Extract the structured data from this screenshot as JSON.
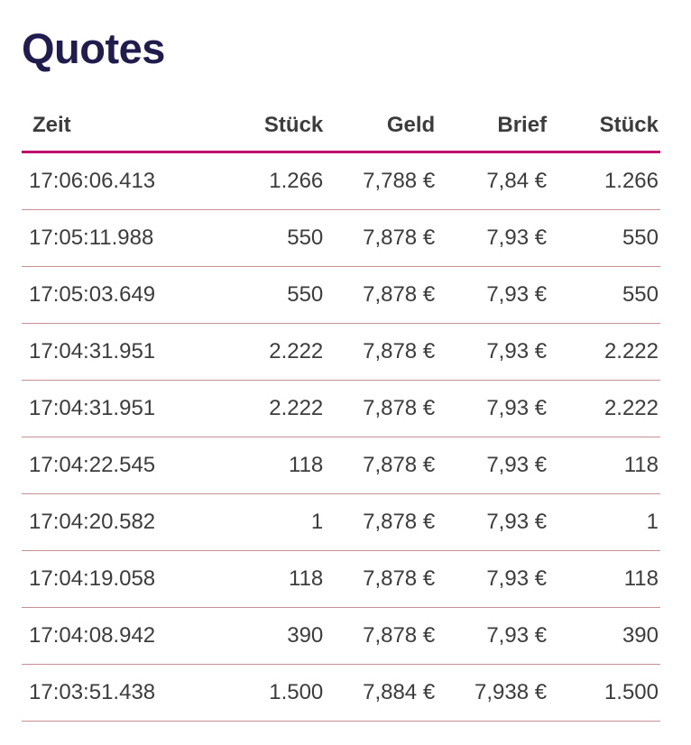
{
  "page": {
    "title": "Quotes"
  },
  "colors": {
    "title_text": "#211c4e",
    "header_rule": "#bf0d6e",
    "row_rule": "#c79097",
    "body_text": "#3c3c3c"
  },
  "table": {
    "columns": [
      {
        "label": "Zeit",
        "align": "left"
      },
      {
        "label": "Stück",
        "align": "right"
      },
      {
        "label": "Geld",
        "align": "right"
      },
      {
        "label": "Brief",
        "align": "right"
      },
      {
        "label": "Stück",
        "align": "right"
      }
    ],
    "rows": [
      [
        "17:06:06.413",
        "1.266",
        "7,788 €",
        "7,84 €",
        "1.266"
      ],
      [
        "17:05:11.988",
        "550",
        "7,878 €",
        "7,93 €",
        "550"
      ],
      [
        "17:05:03.649",
        "550",
        "7,878 €",
        "7,93 €",
        "550"
      ],
      [
        "17:04:31.951",
        "2.222",
        "7,878 €",
        "7,93 €",
        "2.222"
      ],
      [
        "17:04:31.951",
        "2.222",
        "7,878 €",
        "7,93 €",
        "2.222"
      ],
      [
        "17:04:22.545",
        "118",
        "7,878 €",
        "7,93 €",
        "118"
      ],
      [
        "17:04:20.582",
        "1",
        "7,878 €",
        "7,93 €",
        "1"
      ],
      [
        "17:04:19.058",
        "118",
        "7,878 €",
        "7,93 €",
        "118"
      ],
      [
        "17:04:08.942",
        "390",
        "7,878 €",
        "7,93 €",
        "390"
      ],
      [
        "17:03:51.438",
        "1.500",
        "7,884 €",
        "7,938 €",
        "1.500"
      ]
    ],
    "cell_names": [
      "cell-zeit",
      "cell-stueck-geld",
      "cell-geld",
      "cell-brief",
      "cell-stueck-brief"
    ]
  }
}
